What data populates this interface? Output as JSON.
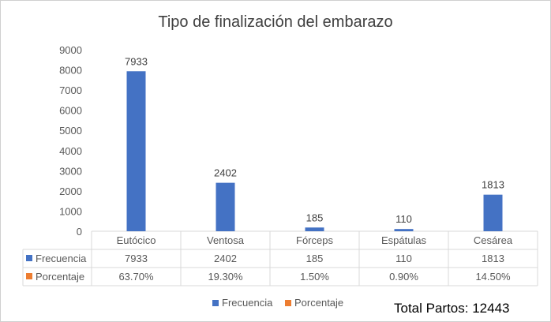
{
  "chart_data": {
    "type": "bar",
    "title": "Tipo de finalización del embarazo",
    "categories": [
      "Eutócico",
      "Ventosa",
      "Fórceps",
      "Espátulas",
      "Cesárea"
    ],
    "series": [
      {
        "name": "Frecuencia",
        "values": [
          7933,
          2402,
          185,
          110,
          1813
        ],
        "labels": [
          "7933",
          "2402",
          "185",
          "110",
          "1813"
        ],
        "color": "#4472C4"
      },
      {
        "name": "Porcentaje",
        "values": [
          63.7,
          19.3,
          1.5,
          0.9,
          14.5
        ],
        "labels": [
          "63.70%",
          "19.30%",
          "1.50%",
          "0.90%",
          "14.50%"
        ],
        "color": "#ED7D31"
      }
    ],
    "ylim": [
      0,
      9000
    ],
    "yticks": [
      0,
      1000,
      2000,
      3000,
      4000,
      5000,
      6000,
      7000,
      8000,
      9000
    ],
    "grid": false,
    "data_table": true,
    "legend": "bottom",
    "annotation": "Total Partos: 12443"
  }
}
